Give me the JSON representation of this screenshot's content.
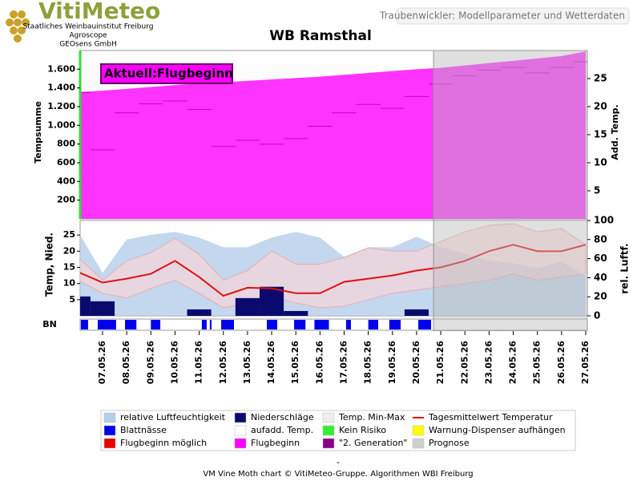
{
  "header": {
    "logo": "VitiMeteo",
    "lines": [
      "Staatliches Weinbauinstitut Freiburg",
      "Agroscope",
      "GEOsens GmbH"
    ],
    "page_title": "Traubenwickler: Modellparameter und Wetterdaten"
  },
  "chart_data": [
    {
      "type": "area",
      "title": "WB Ramsthal",
      "ylabel": "Tempsumme",
      "y2label": "Add. Temp.",
      "annotation": "Aktuell:Flugbeginn",
      "ylim": [
        0,
        1800
      ],
      "yticks": [
        200,
        400,
        600,
        800,
        {
          "value": 1000,
          "label": "1.000"
        },
        {
          "value": 1200,
          "label": "1.200"
        },
        {
          "value": 1400,
          "label": "1.400"
        },
        {
          "value": 1600,
          "label": "1.600"
        }
      ],
      "y2lim": [
        0,
        30
      ],
      "y2ticks": [
        5,
        10,
        15,
        20,
        25
      ],
      "series": [
        {
          "kind": "area",
          "color": "#ff33ff",
          "values": [
            1355,
            1370,
            1390,
            1410,
            1430,
            1450,
            1460,
            1475,
            1490,
            1505,
            1520,
            1540,
            1560,
            1580,
            1600,
            1615,
            1640,
            1665,
            1690,
            1715,
            1740,
            1790
          ]
        },
        {
          "kind": "step",
          "axis": "y2",
          "color": "#cc00cc",
          "values": [
            22.5,
            12.3,
            18.9,
            20.5,
            21,
            19.5,
            12.9,
            14,
            13.3,
            14.3,
            16.5,
            18.9,
            20.4,
            19.7,
            21.8,
            24,
            25.5,
            26.5,
            27,
            26,
            27,
            28
          ]
        }
      ]
    },
    {
      "type": "combo",
      "ylabel": "Temp, Nied.",
      "y2label": "rel. Luftf.",
      "bn_label": "BN",
      "categories": [
        null,
        "07.05.26",
        "08.05.26",
        "09.05.26",
        "10.05.26",
        "11.05.26",
        "12.05.26",
        "13.05.26",
        "14.05.26",
        "15.05.26",
        "16.05.26",
        "17.05.26",
        "18.05.26",
        "19.05.26",
        "20.05.26",
        "21.05.26",
        "22.05.26",
        "23.05.26",
        "24.05.26",
        "25.05.26",
        "26.05.26",
        "27.05.26"
      ],
      "ylim": [
        0,
        29.5
      ],
      "yticks": [
        5,
        10,
        15,
        20,
        25
      ],
      "y2lim": [
        0,
        100
      ],
      "y2ticks": [
        0,
        20,
        40,
        60,
        80,
        100
      ],
      "prognose_from": 14.7,
      "series": [
        {
          "kind": "area",
          "axis": "y2",
          "color": "#b4cdea",
          "values": [
            88,
            45,
            80,
            85,
            88,
            82,
            72,
            72,
            82,
            88,
            82,
            62,
            72,
            72,
            83,
            72,
            65,
            58,
            55,
            50,
            57,
            42
          ]
        },
        {
          "kind": "band_max",
          "color": "#ffd6d6",
          "values": [
            18,
            11,
            17,
            19.5,
            24,
            19,
            11,
            14,
            20,
            16,
            16,
            18,
            21,
            20,
            20,
            23,
            26,
            28,
            28.5,
            26,
            27,
            22
          ]
        },
        {
          "kind": "band_min",
          "color": "#ffd6d6",
          "values": [
            11,
            7,
            5.5,
            8.5,
            11,
            7,
            2.5,
            4,
            6,
            4,
            2.5,
            3,
            5,
            7,
            8,
            9,
            10,
            11,
            13,
            11,
            12,
            13
          ]
        },
        {
          "kind": "line",
          "color": "#e01010",
          "values": [
            13.5,
            10.3,
            11.5,
            13,
            17,
            12,
            6.2,
            8.7,
            8.5,
            7,
            7,
            10.5,
            11.5,
            12.5,
            14,
            15,
            17,
            20,
            22,
            20,
            20,
            22
          ]
        },
        {
          "kind": "bar",
          "color": "#0a0a6e",
          "values": [
            6,
            4.5,
            0,
            0,
            0,
            2,
            0,
            5.5,
            9,
            1.5,
            0,
            0,
            0,
            0,
            2,
            0,
            0,
            0,
            0,
            0,
            0,
            0
          ]
        },
        {
          "kind": "bn",
          "color": "#0000ee",
          "intervals": [
            [
              0.1,
              0.4
            ],
            [
              0.8,
              1.56
            ],
            [
              1.93,
              2.4
            ],
            [
              3.0,
              3.39
            ],
            [
              5.11,
              5.31
            ],
            [
              5.44,
              5.51
            ],
            [
              5.91,
              6.44
            ],
            [
              7.8,
              8.23
            ],
            [
              8.93,
              9.4
            ],
            [
              9.77,
              10.37
            ],
            [
              11.08,
              11.28
            ],
            [
              12.0,
              12.41
            ],
            [
              12.87,
              13.34
            ],
            [
              14.07,
              14.6
            ]
          ]
        }
      ],
      "legend": [
        {
          "name": "relative Luftfeuchtigkeit",
          "color": "#b4cdea"
        },
        {
          "name": "Niederschläge",
          "color": "#0a0a6e"
        },
        {
          "name": "Temp. Min-Max",
          "color": "#eeeeee"
        },
        {
          "name": "Tagesmittelwert Temperatur",
          "color": "#e01010",
          "style": "line"
        },
        {
          "name": "Blattnässe",
          "color": "#0000ee"
        },
        {
          "name": "aufadd. Temp.",
          "color": "#ffffff"
        },
        {
          "name": "Kein Risiko",
          "color": "#33ee33"
        },
        {
          "name": "Warnung-Dispenser aufhängen",
          "color": "#ffff00"
        },
        {
          "name": "Flugbeginn möglich",
          "color": "#ee0000"
        },
        {
          "name": "Flugbeginn",
          "color": "#ff00ff"
        },
        {
          "name": "\"2. Generation\"",
          "color": "#880088"
        },
        {
          "name": "Prognose",
          "color": "#d0d0d0"
        }
      ]
    }
  ],
  "footer": {
    "dash": "-",
    "credit": "VM Vine Moth chart © VitiMeteo-Gruppe. Algorithmen WBI Freiburg"
  }
}
